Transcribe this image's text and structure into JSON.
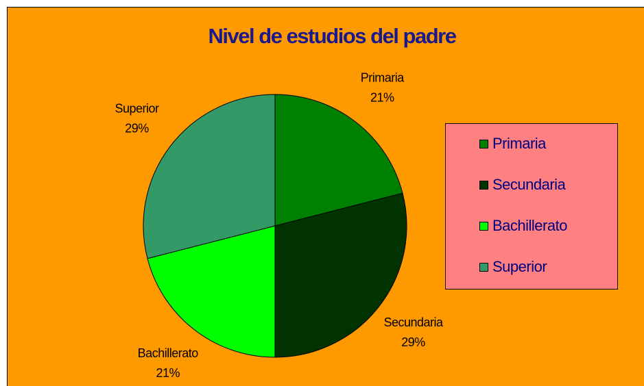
{
  "chart_data": {
    "type": "pie",
    "title": "Nivel de estudios del padre",
    "categories": [
      "Primaria",
      "Secundaria",
      "Bachillerato",
      "Superior"
    ],
    "values": [
      21,
      29,
      21,
      29
    ],
    "value_labels": [
      "21%",
      "29%",
      "21%",
      "29%"
    ],
    "colors": [
      "#008000",
      "#003300",
      "#00FF00",
      "#339966"
    ],
    "legend": "right"
  }
}
